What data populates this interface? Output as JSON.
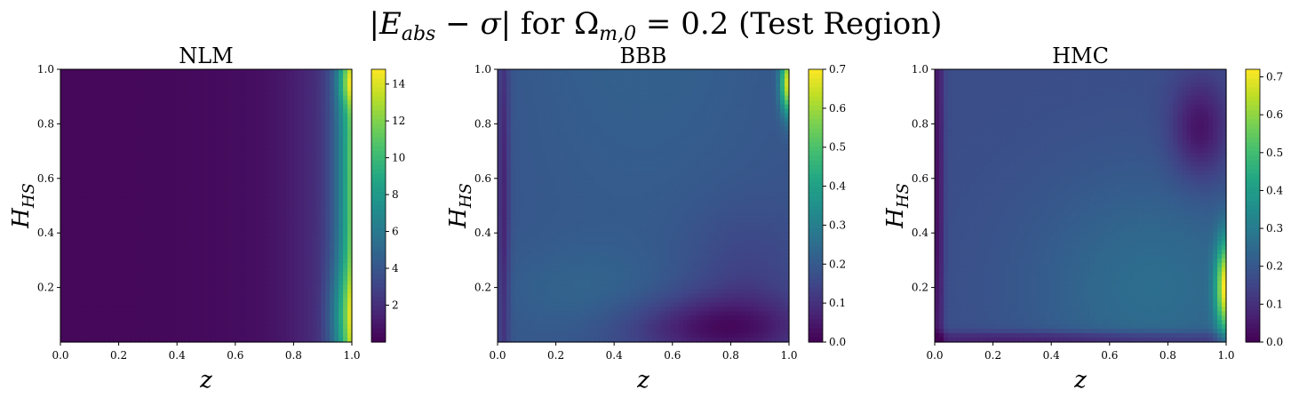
{
  "figure": {
    "title": "|E_abs − σ| for Ω_m,0 = 0.2 (Test Region)",
    "title_parts": {
      "open": "|",
      "var": "E",
      "var_sub": "abs",
      "minus": " − ",
      "sigma": "σ",
      "close": "| for ",
      "omega": "Ω",
      "omega_sub": "m,0",
      "value": " = 0.2 (Test Region)"
    }
  },
  "colormap": "viridis",
  "chart_data": [
    {
      "type": "heatmap",
      "title": "NLM",
      "xlabel": "z",
      "ylabel": "H_HS",
      "xlim": [
        0.0,
        1.0
      ],
      "ylim": [
        0.0,
        1.0
      ],
      "x_ticks": [
        "0.0",
        "0.2",
        "0.4",
        "0.6",
        "0.8",
        "1.0"
      ],
      "y_ticks": [
        "0.2",
        "0.4",
        "0.6",
        "0.8",
        "1.0"
      ],
      "colorbar": {
        "min": 0.0,
        "max": 14.8,
        "ticks": [
          "2",
          "4",
          "6",
          "8",
          "10",
          "12",
          "14"
        ],
        "tick_values": [
          2,
          4,
          6,
          8,
          10,
          12,
          14
        ]
      },
      "description_values": {
        "low_region_value": 0.3,
        "right_edge_peak_value": 14.5
      }
    },
    {
      "type": "heatmap",
      "title": "BBB",
      "xlabel": "z",
      "ylabel": "H_HS",
      "xlim": [
        0.0,
        1.0
      ],
      "ylim": [
        0.0,
        1.0
      ],
      "x_ticks": [
        "0.0",
        "0.2",
        "0.4",
        "0.6",
        "0.8",
        "1.0"
      ],
      "y_ticks": [
        "0.2",
        "0.4",
        "0.6",
        "0.8",
        "1.0"
      ],
      "colorbar": {
        "min": 0.0,
        "max": 0.7,
        "ticks": [
          "0.0",
          "0.1",
          "0.2",
          "0.3",
          "0.4",
          "0.5",
          "0.6",
          "0.7"
        ],
        "tick_values": [
          0.0,
          0.1,
          0.2,
          0.3,
          0.4,
          0.5,
          0.6,
          0.7
        ]
      },
      "description_values": {
        "background_value": 0.2,
        "top_right_peak_value": 0.68
      }
    },
    {
      "type": "heatmap",
      "title": "HMC",
      "xlabel": "z",
      "ylabel": "H_HS",
      "xlim": [
        0.0,
        1.0
      ],
      "ylim": [
        0.0,
        1.0
      ],
      "x_ticks": [
        "0.0",
        "0.2",
        "0.4",
        "0.6",
        "0.8",
        "1.0"
      ],
      "y_ticks": [
        "0.2",
        "0.4",
        "0.6",
        "0.8",
        "1.0"
      ],
      "colorbar": {
        "min": 0.0,
        "max": 0.72,
        "ticks": [
          "0.0",
          "0.1",
          "0.2",
          "0.3",
          "0.4",
          "0.5",
          "0.6",
          "0.7"
        ],
        "tick_values": [
          0.0,
          0.1,
          0.2,
          0.3,
          0.4,
          0.5,
          0.6,
          0.7
        ]
      },
      "description_values": {
        "background_value": 0.17,
        "bottom_right_peak_value": 0.7,
        "upper_right_minimum_value": 0.02
      }
    }
  ]
}
